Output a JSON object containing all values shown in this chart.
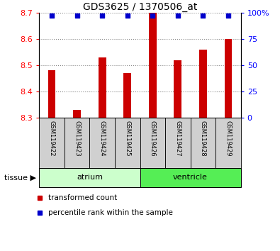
{
  "title": "GDS3625 / 1370506_at",
  "samples": [
    "GSM119422",
    "GSM119423",
    "GSM119424",
    "GSM119425",
    "GSM119426",
    "GSM119427",
    "GSM119428",
    "GSM119429"
  ],
  "transformed_count": [
    8.48,
    8.33,
    8.53,
    8.47,
    8.7,
    8.52,
    8.56,
    8.6
  ],
  "percentile_rank": [
    97,
    97,
    97,
    97,
    97,
    97,
    97,
    97
  ],
  "ylim_left": [
    8.3,
    8.7
  ],
  "ylim_right": [
    0,
    100
  ],
  "yticks_left": [
    8.3,
    8.4,
    8.5,
    8.6,
    8.7
  ],
  "yticks_right": [
    0,
    25,
    50,
    75,
    100
  ],
  "bar_color": "#cc0000",
  "dot_color": "#0000cc",
  "bar_bottom": 8.3,
  "tissue_groups": [
    {
      "label": "atrium",
      "start": 0,
      "end": 4,
      "color": "#ccffcc"
    },
    {
      "label": "ventricle",
      "start": 4,
      "end": 8,
      "color": "#55ee55"
    }
  ],
  "tissue_label": "tissue",
  "legend_bar_label": "transformed count",
  "legend_dot_label": "percentile rank within the sample",
  "grid_style": "dotted",
  "grid_color": "#888888",
  "sample_box_color": "#d0d0d0",
  "bar_width": 0.3
}
